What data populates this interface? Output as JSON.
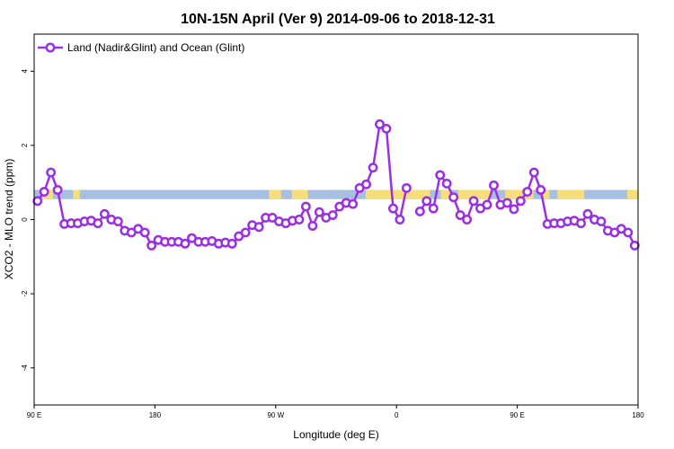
{
  "chart_data": {
    "type": "line",
    "title": "10N-15N April (Ver 9)   2014-09-06 to 2018-12-31",
    "xlabel": "Longitude (deg E)",
    "ylabel": "XCO2 - MLO trend (ppm)",
    "xlim": [
      90,
      450
    ],
    "ylim": [
      -5,
      5
    ],
    "x_ticks": [
      {
        "value": 90,
        "label": "90 E"
      },
      {
        "value": 180,
        "label": "180"
      },
      {
        "value": 270,
        "label": "90 W"
      },
      {
        "value": 360,
        "label": "0"
      },
      {
        "value": 450,
        "label": "90 E"
      },
      {
        "value": 540,
        "label": "180"
      }
    ],
    "y_ticks": [
      {
        "value": -4,
        "label": "-4"
      },
      {
        "value": -2,
        "label": "-2"
      },
      {
        "value": 0,
        "label": "0"
      },
      {
        "value": 2,
        "label": "2"
      },
      {
        "value": 4,
        "label": "4"
      }
    ],
    "legend": {
      "position": "top-left",
      "entries": [
        "Land (Nadir&Glint) and Ocean (Glint)"
      ]
    },
    "series": [
      {
        "name": "Land (Nadir&Glint) and Ocean (Glint)",
        "color": "#9b30e0",
        "segments": [
          {
            "x": [
              92.5,
              97.5,
              102.5,
              107.5,
              112.5,
              117.5,
              122.5,
              127.5,
              132.5,
              137.5,
              142.5,
              147.5,
              152.5,
              157.5,
              162.5,
              167.5,
              172.5,
              177.5,
              182.5,
              187.5,
              192.5,
              197.5,
              202.5,
              207.5,
              212.5,
              217.5,
              222.5,
              227.5,
              232.5,
              237.5,
              242.5,
              247.5,
              252.5,
              257.5,
              262.5,
              267.5,
              272.5,
              277.5,
              282.5,
              287.5,
              292.5,
              297.5,
              302.5,
              307.5,
              312.5,
              317.5,
              322.5,
              327.5,
              332.5,
              337.5,
              342.5,
              347.5,
              352.5,
              357.5,
              362.5,
              367.5
            ],
            "y": [
              0.5,
              0.75,
              1.27,
              0.8,
              -0.12,
              -0.1,
              -0.1,
              -0.05,
              -0.03,
              -0.1,
              0.15,
              0.0,
              -0.05,
              -0.3,
              -0.35,
              -0.25,
              -0.35,
              -0.7,
              -0.55,
              -0.6,
              -0.6,
              -0.6,
              -0.65,
              -0.5,
              -0.6,
              -0.6,
              -0.58,
              -0.65,
              -0.62,
              -0.65,
              -0.45,
              -0.35,
              -0.15,
              -0.2,
              0.05,
              0.05,
              -0.05,
              -0.1,
              -0.03,
              0.0,
              0.35,
              -0.17,
              0.2,
              0.05,
              0.12,
              0.35,
              0.45,
              0.42,
              0.85,
              0.95,
              1.4,
              2.57,
              2.45,
              0.3,
              0.0,
              0.85
            ]
          },
          {
            "x": [
              377.5,
              382.5,
              387.5,
              392.5,
              397.5,
              402.5,
              407.5,
              412.5,
              417.5,
              422.5,
              427.5,
              432.5,
              437.5,
              442.5,
              447.5,
              452.5,
              457.5,
              462.5,
              467.5,
              472.5,
              477.5,
              482.5,
              487.5,
              492.5,
              497.5,
              502.5,
              507.5,
              512.5,
              517.5,
              522.5,
              527.5,
              532.5,
              537.5
            ],
            "y": [
              0.22,
              0.5,
              0.3,
              1.2,
              0.97,
              0.6,
              0.12,
              0.0,
              0.5,
              0.3,
              0.4,
              0.92,
              0.4,
              0.45,
              0.28,
              0.5,
              0.75,
              1.27,
              0.8,
              -0.12,
              -0.1,
              -0.1,
              -0.05,
              -0.03,
              -0.1,
              0.15,
              0.0,
              -0.05,
              -0.3,
              -0.35,
              -0.25,
              -0.35,
              -0.7
            ]
          }
        ]
      }
    ],
    "background_band": {
      "y_range": [
        0.55,
        0.8
      ],
      "ocean_color": "#a7bfe1",
      "land_color": "#f6de7a",
      "land_spans": [
        [
          96,
          104
        ],
        [
          119,
          124
        ],
        [
          265,
          274
        ],
        [
          282,
          294
        ],
        [
          337,
          385
        ],
        [
          393,
          400
        ],
        [
          406,
          430
        ],
        [
          441,
          462
        ],
        [
          468,
          474
        ],
        [
          480,
          500
        ],
        [
          532,
          540
        ]
      ]
    }
  }
}
